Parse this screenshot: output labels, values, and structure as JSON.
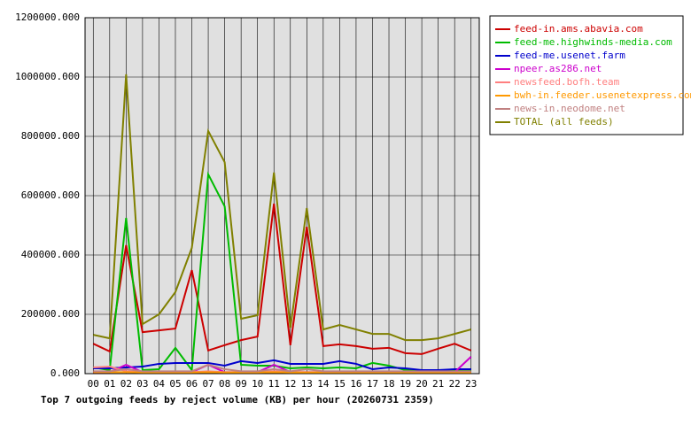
{
  "chart_data": {
    "type": "line",
    "title": "Top 7 outgoing feeds by reject volume (KB) per hour (20260731 2359)",
    "categories": [
      "00",
      "01",
      "02",
      "03",
      "04",
      "05",
      "06",
      "07",
      "08",
      "09",
      "10",
      "11",
      "12",
      "13",
      "14",
      "15",
      "16",
      "17",
      "18",
      "19",
      "20",
      "21",
      "22",
      "23"
    ],
    "series": [
      {
        "name": "feed-in.ams.abavia.com",
        "color": "#cc0000",
        "values": [
          101000,
          75000,
          433000,
          140000,
          146000,
          152000,
          349000,
          78000,
          96000,
          113000,
          125000,
          573000,
          96000,
          495000,
          93000,
          99000,
          93000,
          84000,
          87000,
          69000,
          66000,
          84000,
          101000,
          78000
        ]
      },
      {
        "name": "feed-me.highwinds-media.com",
        "color": "#00bb00",
        "values": [
          21000,
          12000,
          525000,
          12000,
          15000,
          87000,
          12000,
          672000,
          564000,
          30000,
          27000,
          27000,
          18000,
          21000,
          18000,
          21000,
          18000,
          36000,
          27000,
          12000,
          12000,
          12000,
          12000,
          12000
        ]
      },
      {
        "name": "feed-me.usenet.farm",
        "color": "#0000cc",
        "values": [
          18000,
          18000,
          21000,
          24000,
          33000,
          36000,
          36000,
          36000,
          27000,
          42000,
          36000,
          45000,
          33000,
          33000,
          33000,
          42000,
          33000,
          15000,
          21000,
          18000,
          12000,
          12000,
          15000,
          15000
        ]
      },
      {
        "name": "npeer.as286.net",
        "color": "#cc00cc",
        "values": [
          5000,
          5000,
          30000,
          5000,
          5000,
          5000,
          5000,
          30000,
          5000,
          5000,
          5000,
          30000,
          5000,
          5000,
          5000,
          5000,
          5000,
          5000,
          5000,
          5000,
          5000,
          5000,
          5000,
          57000
        ]
      },
      {
        "name": "newsfeed.bofh.team",
        "color": "#ff7f7f",
        "values": [
          21000,
          24000,
          8000,
          5000,
          5000,
          5000,
          5000,
          8000,
          5000,
          5000,
          5000,
          8000,
          5000,
          5000,
          5000,
          5000,
          5000,
          5000,
          5000,
          5000,
          5000,
          5000,
          5000,
          5000
        ]
      },
      {
        "name": "bwh-in.feeder.usenetexpress.com",
        "color": "#ff9900",
        "values": [
          5000,
          5000,
          5000,
          4000,
          4000,
          4000,
          4000,
          5000,
          4000,
          4000,
          4000,
          5000,
          4000,
          4000,
          4000,
          4000,
          4000,
          4000,
          4000,
          4000,
          4000,
          4000,
          4000,
          4000
        ]
      },
      {
        "name": "news-in.neodome.net",
        "color": "#c08080",
        "values": [
          8000,
          8000,
          15000,
          8000,
          8000,
          8000,
          8000,
          30000,
          15000,
          8000,
          8000,
          15000,
          8000,
          15000,
          8000,
          8000,
          8000,
          8000,
          8000,
          8000,
          8000,
          8000,
          8000,
          8000
        ]
      },
      {
        "name": "TOTAL (all feeds)",
        "color": "#808000",
        "values": [
          131000,
          119000,
          1009000,
          167000,
          200000,
          275000,
          424000,
          818000,
          713000,
          185000,
          197000,
          678000,
          155000,
          558000,
          149000,
          164000,
          149000,
          134000,
          134000,
          113000,
          113000,
          119000,
          134000,
          149000
        ]
      }
    ],
    "ylim": [
      0,
      1200000
    ],
    "yticks": [
      {
        "value": 0,
        "label": "0.000"
      },
      {
        "value": 200000,
        "label": "200000.000"
      },
      {
        "value": 400000,
        "label": "400000.000"
      },
      {
        "value": 600000,
        "label": "600000.000"
      },
      {
        "value": 800000,
        "label": "800000.000"
      },
      {
        "value": 1000000,
        "label": "1000000.000"
      },
      {
        "value": 1200000,
        "label": "1200000.000"
      }
    ],
    "grid": true,
    "legend": "right"
  }
}
